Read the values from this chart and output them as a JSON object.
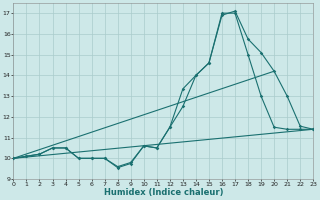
{
  "xlabel": "Humidex (Indice chaleur)",
  "xlim": [
    0,
    23
  ],
  "ylim": [
    9,
    17.5
  ],
  "yticks": [
    9,
    10,
    11,
    12,
    13,
    14,
    15,
    16,
    17
  ],
  "xticks": [
    0,
    1,
    2,
    3,
    4,
    5,
    6,
    7,
    8,
    9,
    10,
    11,
    12,
    13,
    14,
    15,
    16,
    17,
    18,
    19,
    20,
    21,
    22,
    23
  ],
  "bg_color": "#cde8e8",
  "grid_color": "#aacccc",
  "line_color": "#1a7070",
  "series1_x": [
    0,
    1,
    2,
    3,
    4,
    5,
    6,
    7,
    8,
    9,
    10,
    11,
    12,
    13,
    14,
    15,
    16,
    17,
    18,
    19,
    20,
    21,
    22,
    23
  ],
  "series1_y": [
    10.0,
    10.1,
    10.2,
    10.5,
    10.5,
    10.0,
    10.0,
    10.0,
    9.55,
    9.75,
    10.6,
    10.5,
    11.5,
    12.5,
    14.0,
    14.6,
    17.0,
    17.0,
    15.0,
    13.0,
    11.5,
    11.4,
    11.4,
    11.4
  ],
  "series2_x": [
    0,
    1,
    2,
    3,
    4,
    5,
    6,
    7,
    8,
    9,
    10,
    11,
    12,
    13,
    14,
    15,
    16,
    17,
    18,
    19,
    20,
    21,
    22,
    23
  ],
  "series2_y": [
    10.0,
    10.1,
    10.2,
    10.5,
    10.5,
    10.0,
    10.0,
    10.0,
    9.6,
    9.8,
    10.6,
    10.5,
    11.5,
    13.35,
    14.0,
    14.6,
    16.9,
    17.1,
    15.75,
    15.1,
    14.2,
    13.0,
    11.55,
    11.4
  ],
  "line3_x": [
    0,
    23
  ],
  "line3_y": [
    10.0,
    11.4
  ],
  "line4_x": [
    0,
    20
  ],
  "line4_y": [
    10.0,
    14.2
  ]
}
